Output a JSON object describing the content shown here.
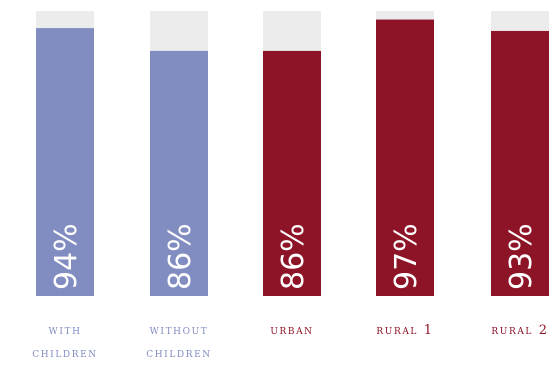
{
  "chart_data": {
    "type": "bar",
    "categories": [
      [
        "with",
        "children"
      ],
      [
        "without",
        "children"
      ],
      [
        "urban"
      ],
      [
        "rural 1"
      ],
      [
        "rural 2"
      ]
    ],
    "values": [
      94,
      86,
      86,
      97,
      93
    ],
    "labels": [
      "94%",
      "86%",
      "86%",
      "97%",
      "93%"
    ],
    "ylim": [
      0,
      100
    ],
    "colors": {
      "background": "#ececec",
      "bars": [
        "#818cc0",
        "#818cc0",
        "#8d1426",
        "#8d1426",
        "#8d1426"
      ],
      "labels": [
        "#818cc0",
        "#818cc0",
        "#8d1426",
        "#8d1426",
        "#8d1426"
      ]
    }
  }
}
